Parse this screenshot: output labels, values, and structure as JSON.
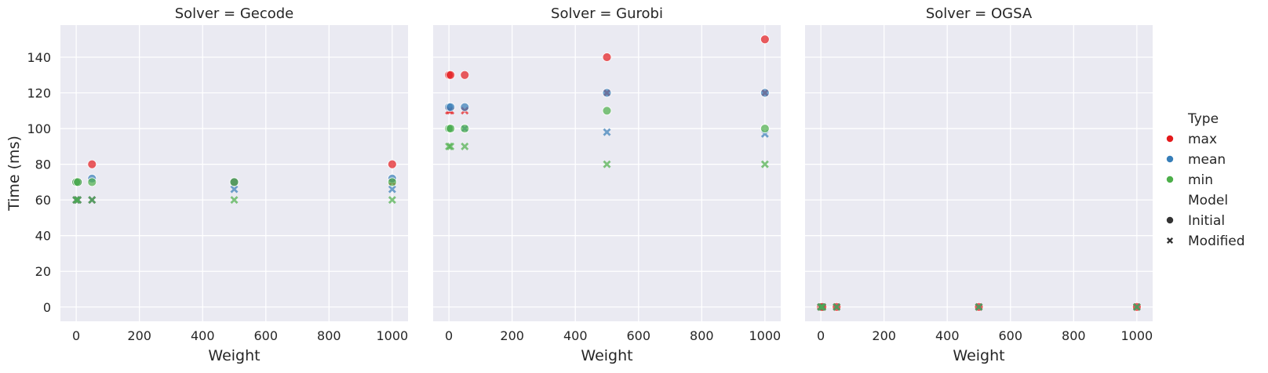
{
  "chart_data": {
    "type": "scatter",
    "xlabel": "Weight",
    "ylabel": "Time (ms)",
    "xlim": [
      -50,
      1050
    ],
    "ylim": [
      -8,
      158
    ],
    "xticks": [
      0,
      200,
      400,
      600,
      800,
      1000
    ],
    "yticks": [
      0,
      20,
      40,
      60,
      80,
      100,
      120,
      140
    ],
    "grid": true,
    "legend_position": "right",
    "colors": {
      "max": "#e41a1c",
      "mean": "#377eb8",
      "min": "#4daf4a"
    },
    "legend": {
      "hue_title": "Type",
      "hue": [
        "max",
        "mean",
        "min"
      ],
      "style_title": "Model",
      "style": [
        "Initial",
        "Modified"
      ]
    },
    "panels": [
      {
        "title": "Solver = Gecode",
        "points": [
          {
            "x": 0,
            "y": 70,
            "type": "max",
            "model": "Initial"
          },
          {
            "x": 5,
            "y": 70,
            "type": "max",
            "model": "Initial"
          },
          {
            "x": 50,
            "y": 80,
            "type": "max",
            "model": "Initial"
          },
          {
            "x": 500,
            "y": 70,
            "type": "max",
            "model": "Initial"
          },
          {
            "x": 1000,
            "y": 80,
            "type": "max",
            "model": "Initial"
          },
          {
            "x": 0,
            "y": 60,
            "type": "max",
            "model": "Modified"
          },
          {
            "x": 5,
            "y": 60,
            "type": "max",
            "model": "Modified"
          },
          {
            "x": 50,
            "y": 60,
            "type": "max",
            "model": "Modified"
          },
          {
            "x": 500,
            "y": 70,
            "type": "max",
            "model": "Modified"
          },
          {
            "x": 1000,
            "y": 70,
            "type": "max",
            "model": "Modified"
          },
          {
            "x": 0,
            "y": 70,
            "type": "mean",
            "model": "Initial"
          },
          {
            "x": 5,
            "y": 70,
            "type": "mean",
            "model": "Initial"
          },
          {
            "x": 50,
            "y": 72,
            "type": "mean",
            "model": "Initial"
          },
          {
            "x": 500,
            "y": 70,
            "type": "mean",
            "model": "Initial"
          },
          {
            "x": 1000,
            "y": 72,
            "type": "mean",
            "model": "Initial"
          },
          {
            "x": 0,
            "y": 60,
            "type": "mean",
            "model": "Modified"
          },
          {
            "x": 5,
            "y": 60,
            "type": "mean",
            "model": "Modified"
          },
          {
            "x": 50,
            "y": 60,
            "type": "mean",
            "model": "Modified"
          },
          {
            "x": 500,
            "y": 66,
            "type": "mean",
            "model": "Modified"
          },
          {
            "x": 1000,
            "y": 66,
            "type": "mean",
            "model": "Modified"
          },
          {
            "x": 0,
            "y": 70,
            "type": "min",
            "model": "Initial"
          },
          {
            "x": 5,
            "y": 70,
            "type": "min",
            "model": "Initial"
          },
          {
            "x": 50,
            "y": 70,
            "type": "min",
            "model": "Initial"
          },
          {
            "x": 500,
            "y": 70,
            "type": "min",
            "model": "Initial"
          },
          {
            "x": 1000,
            "y": 70,
            "type": "min",
            "model": "Initial"
          },
          {
            "x": 0,
            "y": 60,
            "type": "min",
            "model": "Modified"
          },
          {
            "x": 5,
            "y": 60,
            "type": "min",
            "model": "Modified"
          },
          {
            "x": 50,
            "y": 60,
            "type": "min",
            "model": "Modified"
          },
          {
            "x": 500,
            "y": 60,
            "type": "min",
            "model": "Modified"
          },
          {
            "x": 1000,
            "y": 60,
            "type": "min",
            "model": "Modified"
          }
        ]
      },
      {
        "title": "Solver = Gurobi",
        "points": [
          {
            "x": 0,
            "y": 130,
            "type": "max",
            "model": "Initial"
          },
          {
            "x": 5,
            "y": 130,
            "type": "max",
            "model": "Initial"
          },
          {
            "x": 50,
            "y": 130,
            "type": "max",
            "model": "Initial"
          },
          {
            "x": 500,
            "y": 140,
            "type": "max",
            "model": "Initial"
          },
          {
            "x": 1000,
            "y": 150,
            "type": "max",
            "model": "Initial"
          },
          {
            "x": 0,
            "y": 110,
            "type": "max",
            "model": "Modified"
          },
          {
            "x": 5,
            "y": 110,
            "type": "max",
            "model": "Modified"
          },
          {
            "x": 50,
            "y": 110,
            "type": "max",
            "model": "Modified"
          },
          {
            "x": 500,
            "y": 120,
            "type": "max",
            "model": "Modified"
          },
          {
            "x": 1000,
            "y": 120,
            "type": "max",
            "model": "Modified"
          },
          {
            "x": 0,
            "y": 112,
            "type": "mean",
            "model": "Initial"
          },
          {
            "x": 5,
            "y": 112,
            "type": "mean",
            "model": "Initial"
          },
          {
            "x": 50,
            "y": 112,
            "type": "mean",
            "model": "Initial"
          },
          {
            "x": 500,
            "y": 120,
            "type": "mean",
            "model": "Initial"
          },
          {
            "x": 1000,
            "y": 120,
            "type": "mean",
            "model": "Initial"
          },
          {
            "x": 0,
            "y": 100,
            "type": "mean",
            "model": "Modified"
          },
          {
            "x": 5,
            "y": 100,
            "type": "mean",
            "model": "Modified"
          },
          {
            "x": 50,
            "y": 100,
            "type": "mean",
            "model": "Modified"
          },
          {
            "x": 500,
            "y": 98,
            "type": "mean",
            "model": "Modified"
          },
          {
            "x": 1000,
            "y": 97,
            "type": "mean",
            "model": "Modified"
          },
          {
            "x": 0,
            "y": 100,
            "type": "min",
            "model": "Initial"
          },
          {
            "x": 5,
            "y": 100,
            "type": "min",
            "model": "Initial"
          },
          {
            "x": 50,
            "y": 100,
            "type": "min",
            "model": "Initial"
          },
          {
            "x": 500,
            "y": 110,
            "type": "min",
            "model": "Initial"
          },
          {
            "x": 1000,
            "y": 100,
            "type": "min",
            "model": "Initial"
          },
          {
            "x": 0,
            "y": 90,
            "type": "min",
            "model": "Modified"
          },
          {
            "x": 5,
            "y": 90,
            "type": "min",
            "model": "Modified"
          },
          {
            "x": 50,
            "y": 90,
            "type": "min",
            "model": "Modified"
          },
          {
            "x": 500,
            "y": 80,
            "type": "min",
            "model": "Modified"
          },
          {
            "x": 1000,
            "y": 80,
            "type": "min",
            "model": "Modified"
          }
        ]
      },
      {
        "title": "Solver = OGSA",
        "points": [
          {
            "x": 0,
            "y": 0,
            "type": "max",
            "model": "Initial"
          },
          {
            "x": 5,
            "y": 0,
            "type": "max",
            "model": "Initial"
          },
          {
            "x": 50,
            "y": 0,
            "type": "max",
            "model": "Initial"
          },
          {
            "x": 500,
            "y": 0,
            "type": "max",
            "model": "Initial"
          },
          {
            "x": 1000,
            "y": 0,
            "type": "max",
            "model": "Initial"
          },
          {
            "x": 0,
            "y": 0,
            "type": "max",
            "model": "Modified"
          },
          {
            "x": 5,
            "y": 0,
            "type": "max",
            "model": "Modified"
          },
          {
            "x": 50,
            "y": 0,
            "type": "max",
            "model": "Modified"
          },
          {
            "x": 500,
            "y": 0,
            "type": "max",
            "model": "Modified"
          },
          {
            "x": 1000,
            "y": 0,
            "type": "max",
            "model": "Modified"
          },
          {
            "x": 0,
            "y": 0,
            "type": "mean",
            "model": "Modified"
          },
          {
            "x": 5,
            "y": 0,
            "type": "mean",
            "model": "Modified"
          },
          {
            "x": 50,
            "y": 0,
            "type": "mean",
            "model": "Modified"
          },
          {
            "x": 500,
            "y": 0,
            "type": "mean",
            "model": "Modified"
          },
          {
            "x": 1000,
            "y": 0,
            "type": "mean",
            "model": "Modified"
          },
          {
            "x": 0,
            "y": 0,
            "type": "min",
            "model": "Modified"
          },
          {
            "x": 5,
            "y": 0,
            "type": "min",
            "model": "Modified"
          },
          {
            "x": 50,
            "y": 0,
            "type": "min",
            "model": "Modified"
          },
          {
            "x": 500,
            "y": 0,
            "type": "min",
            "model": "Modified"
          },
          {
            "x": 1000,
            "y": 0,
            "type": "min",
            "model": "Modified"
          }
        ]
      }
    ]
  }
}
